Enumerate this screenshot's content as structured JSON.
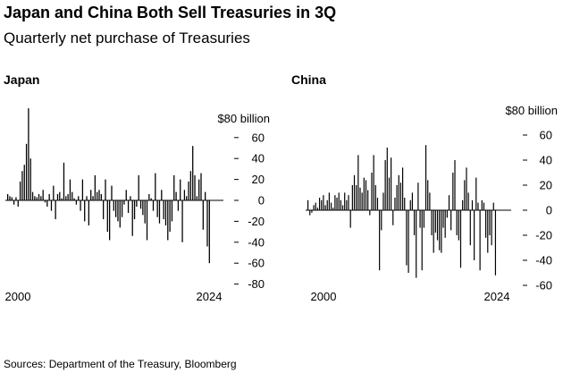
{
  "header": {
    "title": "Japan and China Both Sell Treasuries in 3Q",
    "subtitle": "Quarterly net purchase of Treasuries"
  },
  "source": "Sources: Department of the Treasury, Bloomberg",
  "chart_data": [
    {
      "type": "bar",
      "panel_title": "Japan",
      "unit_label": "$80 billion",
      "x_start": 2000,
      "x_ticks": [
        "2000",
        "2024"
      ],
      "y_ticks": [
        60,
        40,
        20,
        0,
        -20,
        -40,
        -60,
        -80
      ],
      "ylim": [
        -80,
        80
      ],
      "bar_color": "#000000",
      "values": [
        6,
        4,
        3,
        -4,
        3,
        -6,
        18,
        28,
        34,
        54,
        88,
        40,
        8,
        4,
        3,
        6,
        4,
        10,
        -2,
        -6,
        6,
        -10,
        14,
        -18,
        6,
        8,
        2,
        36,
        4,
        6,
        20,
        8,
        2,
        -4,
        4,
        -10,
        20,
        -20,
        4,
        -24,
        10,
        4,
        24,
        8,
        10,
        6,
        -18,
        20,
        -30,
        -38,
        14,
        -10,
        -16,
        -20,
        -26,
        -16,
        -4,
        10,
        -12,
        4,
        -34,
        -18,
        -6,
        24,
        -8,
        -14,
        -22,
        -38,
        6,
        2,
        -10,
        26,
        -16,
        -22,
        10,
        -18,
        -24,
        -38,
        -30,
        -20,
        24,
        8,
        -10,
        20,
        -40,
        10,
        4,
        18,
        28,
        52,
        24,
        4,
        20,
        26,
        -28,
        8,
        -44,
        -60
      ]
    },
    {
      "type": "bar",
      "panel_title": "China",
      "unit_label": "$80 billion",
      "x_start": 2000,
      "x_ticks": [
        "2000",
        "2024"
      ],
      "y_ticks": [
        60,
        40,
        20,
        0,
        -20,
        -40,
        -60
      ],
      "ylim": [
        -60,
        80
      ],
      "bar_color": "#000000",
      "values": [
        8,
        -4,
        -2,
        4,
        6,
        2,
        10,
        8,
        12,
        4,
        8,
        14,
        6,
        2,
        12,
        10,
        14,
        8,
        4,
        14,
        8,
        12,
        -14,
        20,
        28,
        20,
        44,
        18,
        14,
        26,
        24,
        16,
        -4,
        30,
        44,
        20,
        10,
        -48,
        -16,
        14,
        40,
        50,
        26,
        42,
        -12,
        10,
        20,
        28,
        22,
        34,
        10,
        -44,
        -50,
        8,
        14,
        -20,
        -54,
        22,
        -14,
        -48,
        -14,
        52,
        24,
        14,
        -20,
        -34,
        -18,
        -24,
        -32,
        -34,
        -14,
        -22,
        -6,
        12,
        -16,
        30,
        40,
        -20,
        -24,
        -46,
        8,
        24,
        34,
        14,
        -28,
        8,
        -40,
        26,
        6,
        -48,
        8,
        6,
        -22,
        -34,
        -20,
        -28,
        6,
        -52
      ]
    }
  ]
}
